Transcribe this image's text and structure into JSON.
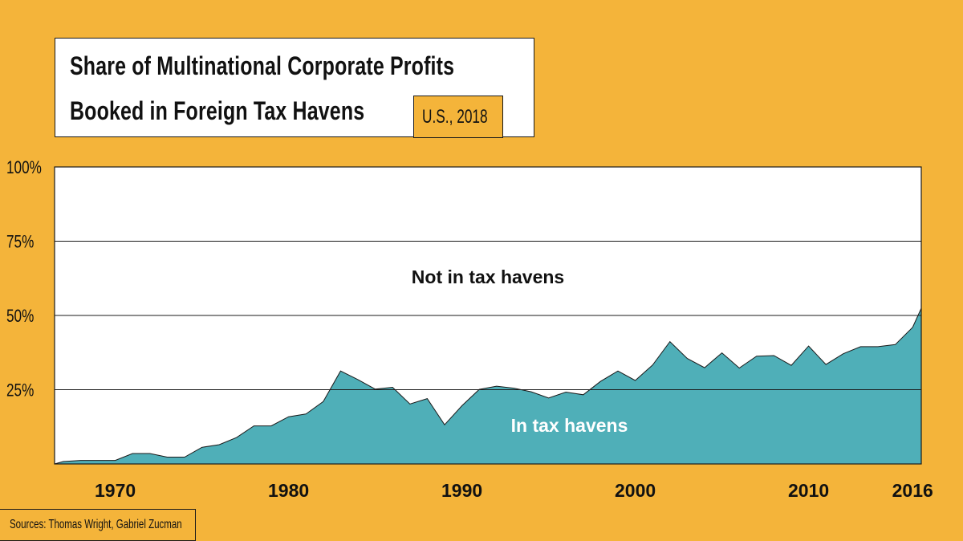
{
  "title_line1": "Share of Multinational Corporate Profits",
  "title_line2": "Booked in Foreign Tax Havens",
  "subtitle": "U.S., 2018",
  "source": "Sources: Thomas Wright, Gabriel Zucman",
  "colors": {
    "background": "#F4B43A",
    "plot_background": "#FFFFFF",
    "area_fill": "#4FAFB8",
    "text": "#111111"
  },
  "chart_data": {
    "type": "area",
    "title": "Share of Multinational Corporate Profits Booked in Foreign Tax Havens",
    "subtitle": "U.S., 2018",
    "xlabel": "",
    "ylabel": "",
    "xlim": [
      1966.5,
      2016.5
    ],
    "ylim": [
      0,
      100
    ],
    "x_ticks": [
      1970,
      1980,
      1990,
      2000,
      2010,
      2016
    ],
    "y_ticks": [
      {
        "value": 100,
        "label": "100%"
      },
      {
        "value": 75,
        "label": "75%"
      },
      {
        "value": 50,
        "label": "50%"
      },
      {
        "value": 25,
        "label": "25%"
      }
    ],
    "grid": true,
    "annotations": [
      {
        "text": "Not in tax havens",
        "x": 1991.5,
        "y": 63,
        "color": "#111111"
      },
      {
        "text": "In tax havens",
        "x": 1996.2,
        "y": 13,
        "color": "#FFFFFF"
      }
    ],
    "series": [
      {
        "name": "In tax havens",
        "x": [
          1966.5,
          1967,
          1968,
          1969,
          1970,
          1971,
          1972,
          1973,
          1974,
          1975,
          1976,
          1977,
          1978,
          1979,
          1980,
          1981,
          1982,
          1983,
          1984,
          1985,
          1986,
          1987,
          1988,
          1989,
          1990,
          1991,
          1992,
          1993,
          1994,
          1995,
          1996,
          1997,
          1998,
          1999,
          2000,
          2001,
          2002,
          2003,
          2004,
          2005,
          2006,
          2007,
          2008,
          2009,
          2010,
          2011,
          2012,
          2013,
          2014,
          2015,
          2016,
          2016.5
        ],
        "values": [
          0,
          0.8,
          1.2,
          1.2,
          1.2,
          3.5,
          3.5,
          2.3,
          2.3,
          5.6,
          6.5,
          8.9,
          12.8,
          12.8,
          15.9,
          16.8,
          21,
          31.3,
          28.4,
          25.2,
          25.8,
          20.2,
          22,
          13.2,
          19.6,
          25.1,
          26.2,
          25.5,
          24.3,
          22.2,
          24.2,
          23.3,
          27.8,
          31.3,
          28.1,
          33.3,
          41.2,
          35.5,
          32.4,
          37.4,
          32.3,
          36.3,
          36.5,
          33.2,
          39.7,
          33.5,
          37.1,
          39.5,
          39.5,
          40.2,
          46,
          52.4
        ]
      }
    ]
  }
}
